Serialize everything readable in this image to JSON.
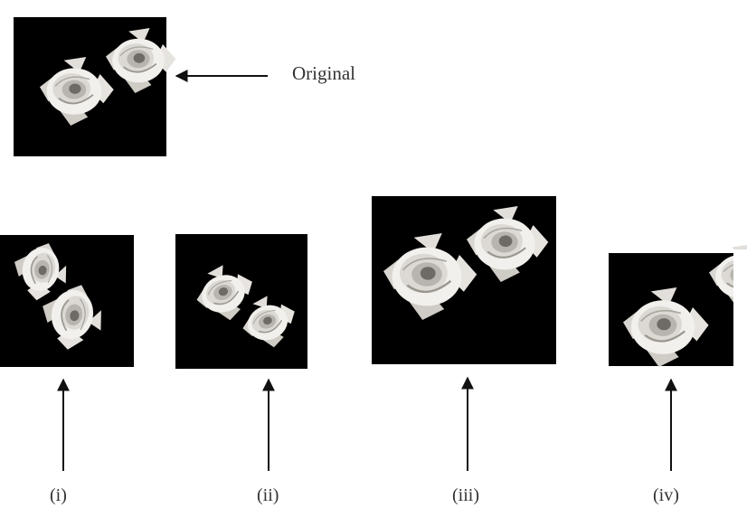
{
  "labels": {
    "original": "Original",
    "variant_i": "(i)",
    "variant_ii": "(ii)",
    "variant_iii": "(iii)",
    "variant_iv": "(iv)"
  },
  "colors": {
    "panel_background": "#000000",
    "petal_light": "#f2f0ec",
    "petal_shadow": "#b8b4ae",
    "rose_center": "#6e6a66",
    "arrow": "#111111",
    "label_text": "#333333"
  },
  "icons": {
    "image": "rose-photo-icon",
    "pointer": "arrow-icon"
  }
}
